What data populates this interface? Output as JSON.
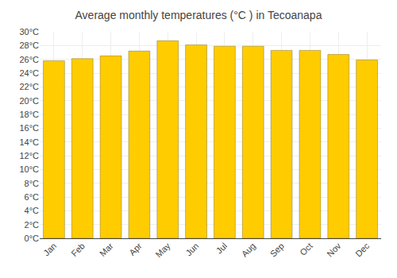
{
  "chart_data": {
    "type": "bar",
    "title": "Average monthly temperatures (°C ) in Tecoanapa",
    "categories": [
      "Jan",
      "Feb",
      "Mar",
      "Apr",
      "May",
      "Jun",
      "Jul",
      "Aug",
      "Sep",
      "Oct",
      "Nov",
      "Dec"
    ],
    "values": [
      25.8,
      26.1,
      26.5,
      27.2,
      28.7,
      28.1,
      27.9,
      27.9,
      27.3,
      27.3,
      26.7,
      25.9
    ],
    "color": "#FFCC00",
    "ylim": [
      0,
      30
    ],
    "yticks": [
      {
        "value": 0,
        "label": "0°C"
      },
      {
        "value": 2,
        "label": "2°C"
      },
      {
        "value": 4,
        "label": "4°C"
      },
      {
        "value": 6,
        "label": "6°C"
      },
      {
        "value": 8,
        "label": "8°C"
      },
      {
        "value": 10,
        "label": "10°C"
      },
      {
        "value": 12,
        "label": "12°C"
      },
      {
        "value": 14,
        "label": "14°C"
      },
      {
        "value": 16,
        "label": "16°C"
      },
      {
        "value": 18,
        "label": "18°C"
      },
      {
        "value": 20,
        "label": "20°C"
      },
      {
        "value": 22,
        "label": "22°C"
      },
      {
        "value": 24,
        "label": "24°C"
      },
      {
        "value": 26,
        "label": "26°C"
      },
      {
        "value": 28,
        "label": "28°C"
      },
      {
        "value": 30,
        "label": "30°C"
      }
    ],
    "grid": true
  }
}
